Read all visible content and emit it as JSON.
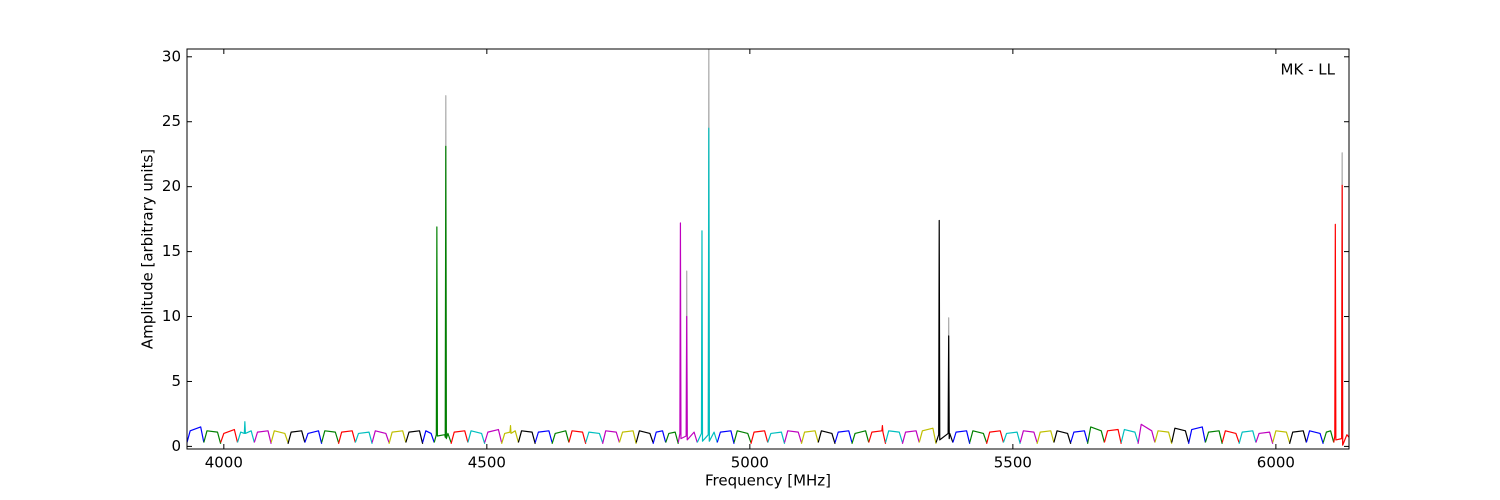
{
  "chart_data": {
    "type": "line",
    "annotation": "MK - LL",
    "x_label": "Frequency [MHz]",
    "y_label": "Amplitude [arbitrary units]",
    "xlim": [
      3930,
      6139
    ],
    "ylim": [
      -0.2,
      30.6
    ],
    "xticks": [
      4000,
      4500,
      5000,
      5500,
      6000
    ],
    "yticks": [
      0,
      5,
      10,
      15,
      20,
      25,
      30
    ],
    "series": [
      {
        "color": "#aaaaaa",
        "x": [
          4421,
          4422,
          4423
        ],
        "values": [
          1.0,
          27.0,
          1.0
        ]
      },
      {
        "color": "#aaaaaa",
        "x": [
          4879,
          4880,
          4881
        ],
        "values": [
          0.8,
          13.5,
          0.5
        ]
      },
      {
        "color": "#aaaaaa",
        "x": [
          4921,
          4922,
          4923
        ],
        "values": [
          0.9,
          30.6,
          0.4
        ]
      },
      {
        "color": "#aaaaaa",
        "x": [
          5377,
          5378,
          5379
        ],
        "values": [
          1.0,
          9.9,
          0.6
        ]
      },
      {
        "color": "#aaaaaa",
        "x": [
          6125,
          6126,
          6127
        ],
        "values": [
          0.6,
          22.6,
          0.1
        ]
      },
      {
        "color": "#0000ff",
        "x": [
          3930,
          3936,
          3956,
          3962
        ],
        "values": [
          0.3,
          1.2,
          1.5,
          0.3
        ]
      },
      {
        "color": "#008000",
        "x": [
          3962,
          3968,
          3988,
          3994
        ],
        "values": [
          0.3,
          1.2,
          1.1,
          0.2
        ]
      },
      {
        "color": "#ff0000",
        "x": [
          3994,
          4000,
          4020,
          4026
        ],
        "values": [
          0.3,
          1.0,
          1.3,
          0.3
        ]
      },
      {
        "color": "#00bfbf",
        "x": [
          4026,
          4032,
          4039,
          4040,
          4041,
          4052,
          4058
        ],
        "values": [
          0.3,
          1.1,
          1.0,
          1.9,
          1.0,
          1.2,
          0.3
        ]
      },
      {
        "color": "#bf00bf",
        "x": [
          4058,
          4064,
          4084,
          4090
        ],
        "values": [
          0.3,
          1.1,
          1.2,
          0.2
        ]
      },
      {
        "color": "#bfbf00",
        "x": [
          4090,
          4096,
          4116,
          4122
        ],
        "values": [
          0.3,
          1.2,
          1.0,
          0.3
        ]
      },
      {
        "color": "#000000",
        "x": [
          4122,
          4128,
          4148,
          4154
        ],
        "values": [
          0.2,
          1.1,
          1.2,
          0.3
        ]
      },
      {
        "color": "#0000ff",
        "x": [
          4154,
          4160,
          4180,
          4186
        ],
        "values": [
          0.3,
          1.0,
          1.2,
          0.2
        ]
      },
      {
        "color": "#008000",
        "x": [
          4186,
          4192,
          4212,
          4218
        ],
        "values": [
          0.3,
          1.2,
          1.1,
          0.3
        ]
      },
      {
        "color": "#ff0000",
        "x": [
          4218,
          4224,
          4244,
          4250
        ],
        "values": [
          0.2,
          1.1,
          1.2,
          0.3
        ]
      },
      {
        "color": "#00bfbf",
        "x": [
          4250,
          4256,
          4276,
          4282
        ],
        "values": [
          0.3,
          1.0,
          1.1,
          0.2
        ]
      },
      {
        "color": "#bf00bf",
        "x": [
          4282,
          4288,
          4308,
          4314
        ],
        "values": [
          0.3,
          1.2,
          1.0,
          0.3
        ]
      },
      {
        "color": "#bfbf00",
        "x": [
          4314,
          4320,
          4340,
          4346
        ],
        "values": [
          0.2,
          1.1,
          1.2,
          0.3
        ]
      },
      {
        "color": "#000000",
        "x": [
          4346,
          4352,
          4372,
          4378
        ],
        "values": [
          0.3,
          1.1,
          1.2,
          0.2
        ]
      },
      {
        "color": "#0000ff",
        "x": [
          4378,
          4384,
          4394,
          4400
        ],
        "values": [
          0.3,
          1.2,
          1.0,
          0.3
        ]
      },
      {
        "color": "#008000",
        "x": [
          4400,
          4404,
          4405,
          4406,
          4420,
          4421,
          4422,
          4423,
          4426,
          4432
        ],
        "values": [
          0.3,
          0.9,
          16.9,
          0.8,
          0.9,
          0.7,
          23.1,
          0.6,
          1.0,
          0.3
        ]
      },
      {
        "color": "#ff0000",
        "x": [
          4432,
          4438,
          4458,
          4464
        ],
        "values": [
          0.2,
          1.1,
          1.2,
          0.3
        ]
      },
      {
        "color": "#00bfbf",
        "x": [
          4464,
          4470,
          4490,
          4496
        ],
        "values": [
          0.3,
          1.2,
          1.0,
          0.2
        ]
      },
      {
        "color": "#bf00bf",
        "x": [
          4496,
          4502,
          4522,
          4528
        ],
        "values": [
          0.3,
          1.1,
          1.3,
          0.3
        ]
      },
      {
        "color": "#bfbf00",
        "x": [
          4528,
          4534,
          4544,
          4545,
          4546,
          4554,
          4560
        ],
        "values": [
          0.2,
          1.0,
          1.1,
          1.6,
          1.0,
          1.2,
          0.3
        ]
      },
      {
        "color": "#000000",
        "x": [
          4560,
          4566,
          4586,
          4592
        ],
        "values": [
          0.3,
          1.2,
          1.1,
          0.2
        ]
      },
      {
        "color": "#0000ff",
        "x": [
          4592,
          4598,
          4618,
          4624
        ],
        "values": [
          0.3,
          1.1,
          1.2,
          0.3
        ]
      },
      {
        "color": "#008000",
        "x": [
          4624,
          4630,
          4650,
          4656
        ],
        "values": [
          0.2,
          1.0,
          1.2,
          0.3
        ]
      },
      {
        "color": "#ff0000",
        "x": [
          4656,
          4662,
          4682,
          4688
        ],
        "values": [
          0.3,
          1.2,
          1.1,
          0.2
        ]
      },
      {
        "color": "#00bfbf",
        "x": [
          4688,
          4694,
          4714,
          4720
        ],
        "values": [
          0.3,
          1.1,
          1.0,
          0.3
        ]
      },
      {
        "color": "#bf00bf",
        "x": [
          4720,
          4726,
          4746,
          4752
        ],
        "values": [
          0.2,
          1.2,
          1.1,
          0.3
        ]
      },
      {
        "color": "#bfbf00",
        "x": [
          4752,
          4758,
          4778,
          4784
        ],
        "values": [
          0.3,
          1.1,
          1.2,
          0.2
        ]
      },
      {
        "color": "#000000",
        "x": [
          4784,
          4790,
          4810,
          4816
        ],
        "values": [
          0.3,
          1.2,
          1.0,
          0.3
        ]
      },
      {
        "color": "#0000ff",
        "x": [
          4816,
          4822,
          4834,
          4840
        ],
        "values": [
          0.2,
          1.1,
          1.2,
          0.3
        ]
      },
      {
        "color": "#008000",
        "x": [
          4840,
          4846,
          4858,
          4864
        ],
        "values": [
          0.3,
          1.0,
          1.1,
          0.2
        ]
      },
      {
        "color": "#bf00bf",
        "x": [
          4864,
          4867,
          4868,
          4869,
          4879,
          4880,
          4881,
          4894,
          4900
        ],
        "values": [
          0.3,
          1.0,
          17.2,
          0.6,
          0.8,
          10.0,
          0.5,
          1.1,
          0.3
        ]
      },
      {
        "color": "#00bfbf",
        "x": [
          4900,
          4908,
          4909,
          4910,
          4921,
          4922,
          4923,
          4932,
          4938
        ],
        "values": [
          0.3,
          1.0,
          16.6,
          0.4,
          0.9,
          24.5,
          0.4,
          1.1,
          0.3
        ]
      },
      {
        "color": "#0000ff",
        "x": [
          4938,
          4944,
          4964,
          4970
        ],
        "values": [
          0.3,
          1.1,
          1.2,
          0.2
        ]
      },
      {
        "color": "#008000",
        "x": [
          4970,
          4976,
          4996,
          5002
        ],
        "values": [
          0.3,
          1.2,
          1.0,
          0.3
        ]
      },
      {
        "color": "#ff0000",
        "x": [
          5002,
          5008,
          5028,
          5034
        ],
        "values": [
          0.2,
          1.1,
          1.2,
          0.3
        ]
      },
      {
        "color": "#00bfbf",
        "x": [
          5034,
          5040,
          5060,
          5066
        ],
        "values": [
          0.3,
          1.0,
          1.1,
          0.2
        ]
      },
      {
        "color": "#bf00bf",
        "x": [
          5066,
          5072,
          5092,
          5098
        ],
        "values": [
          0.3,
          1.2,
          1.1,
          0.3
        ]
      },
      {
        "color": "#bfbf00",
        "x": [
          5098,
          5104,
          5124,
          5130
        ],
        "values": [
          0.2,
          1.1,
          1.2,
          0.3
        ]
      },
      {
        "color": "#000000",
        "x": [
          5130,
          5136,
          5156,
          5162
        ],
        "values": [
          0.3,
          1.2,
          1.0,
          0.2
        ]
      },
      {
        "color": "#0000ff",
        "x": [
          5162,
          5168,
          5188,
          5194
        ],
        "values": [
          0.3,
          1.1,
          1.2,
          0.3
        ]
      },
      {
        "color": "#008000",
        "x": [
          5194,
          5200,
          5220,
          5226
        ],
        "values": [
          0.2,
          1.0,
          1.2,
          0.3
        ]
      },
      {
        "color": "#ff0000",
        "x": [
          5226,
          5232,
          5251,
          5252,
          5253,
          5258
        ],
        "values": [
          0.3,
          1.1,
          1.2,
          1.6,
          1.1,
          0.2
        ]
      },
      {
        "color": "#00bfbf",
        "x": [
          5258,
          5264,
          5284,
          5290
        ],
        "values": [
          0.3,
          1.2,
          1.1,
          0.3
        ]
      },
      {
        "color": "#bf00bf",
        "x": [
          5290,
          5296,
          5316,
          5322
        ],
        "values": [
          0.2,
          1.1,
          1.2,
          0.3
        ]
      },
      {
        "color": "#bfbf00",
        "x": [
          5322,
          5328,
          5348,
          5354
        ],
        "values": [
          0.3,
          1.2,
          1.4,
          0.2
        ]
      },
      {
        "color": "#000000",
        "x": [
          5354,
          5359,
          5360,
          5361,
          5377,
          5378,
          5379,
          5380,
          5386
        ],
        "values": [
          0.3,
          0.9,
          17.4,
          0.5,
          1.0,
          8.5,
          0.6,
          1.0,
          0.3
        ]
      },
      {
        "color": "#0000ff",
        "x": [
          5386,
          5392,
          5412,
          5418
        ],
        "values": [
          0.3,
          1.1,
          1.2,
          0.2
        ]
      },
      {
        "color": "#008000",
        "x": [
          5418,
          5424,
          5444,
          5450
        ],
        "values": [
          0.3,
          1.2,
          1.0,
          0.3
        ]
      },
      {
        "color": "#ff0000",
        "x": [
          5450,
          5456,
          5476,
          5482
        ],
        "values": [
          0.2,
          1.1,
          1.2,
          0.3
        ]
      },
      {
        "color": "#00bfbf",
        "x": [
          5482,
          5488,
          5508,
          5514
        ],
        "values": [
          0.3,
          1.0,
          1.1,
          0.2
        ]
      },
      {
        "color": "#bf00bf",
        "x": [
          5514,
          5520,
          5540,
          5546
        ],
        "values": [
          0.3,
          1.2,
          1.1,
          0.3
        ]
      },
      {
        "color": "#bfbf00",
        "x": [
          5546,
          5552,
          5572,
          5578
        ],
        "values": [
          0.2,
          1.1,
          1.2,
          0.3
        ]
      },
      {
        "color": "#000000",
        "x": [
          5578,
          5584,
          5604,
          5610
        ],
        "values": [
          0.3,
          1.2,
          1.0,
          0.2
        ]
      },
      {
        "color": "#0000ff",
        "x": [
          5610,
          5616,
          5636,
          5642
        ],
        "values": [
          0.3,
          1.1,
          1.2,
          0.3
        ]
      },
      {
        "color": "#008000",
        "x": [
          5642,
          5648,
          5668,
          5674
        ],
        "values": [
          0.2,
          1.5,
          1.2,
          0.3
        ]
      },
      {
        "color": "#ff0000",
        "x": [
          5674,
          5680,
          5700,
          5706
        ],
        "values": [
          0.3,
          1.2,
          1.3,
          0.2
        ]
      },
      {
        "color": "#00bfbf",
        "x": [
          5706,
          5712,
          5732,
          5738
        ],
        "values": [
          0.3,
          1.3,
          1.1,
          0.3
        ]
      },
      {
        "color": "#bf00bf",
        "x": [
          5738,
          5744,
          5764,
          5770
        ],
        "values": [
          0.2,
          1.7,
          1.2,
          0.3
        ]
      },
      {
        "color": "#bfbf00",
        "x": [
          5770,
          5776,
          5796,
          5802
        ],
        "values": [
          0.3,
          1.2,
          1.1,
          0.2
        ]
      },
      {
        "color": "#000000",
        "x": [
          5802,
          5808,
          5828,
          5834
        ],
        "values": [
          0.3,
          1.4,
          1.2,
          0.3
        ]
      },
      {
        "color": "#0000ff",
        "x": [
          5834,
          5840,
          5860,
          5866
        ],
        "values": [
          0.2,
          1.3,
          1.5,
          0.3
        ]
      },
      {
        "color": "#008000",
        "x": [
          5866,
          5872,
          5892,
          5898
        ],
        "values": [
          0.3,
          1.1,
          1.2,
          0.2
        ]
      },
      {
        "color": "#ff0000",
        "x": [
          5898,
          5904,
          5924,
          5930
        ],
        "values": [
          0.3,
          1.2,
          1.0,
          0.3
        ]
      },
      {
        "color": "#00bfbf",
        "x": [
          5930,
          5936,
          5956,
          5962
        ],
        "values": [
          0.2,
          1.1,
          1.2,
          0.3
        ]
      },
      {
        "color": "#bf00bf",
        "x": [
          5962,
          5968,
          5988,
          5994
        ],
        "values": [
          0.3,
          1.0,
          1.1,
          0.2
        ]
      },
      {
        "color": "#bfbf00",
        "x": [
          5994,
          6000,
          6020,
          6026
        ],
        "values": [
          0.3,
          1.2,
          1.1,
          0.3
        ]
      },
      {
        "color": "#000000",
        "x": [
          6026,
          6032,
          6052,
          6058
        ],
        "values": [
          0.2,
          1.1,
          1.2,
          0.3
        ]
      },
      {
        "color": "#0000ff",
        "x": [
          6058,
          6064,
          6084,
          6090
        ],
        "values": [
          0.3,
          1.2,
          1.0,
          0.2
        ]
      },
      {
        "color": "#008000",
        "x": [
          6090,
          6096,
          6104,
          6110
        ],
        "values": [
          0.3,
          1.1,
          1.2,
          0.3
        ]
      },
      {
        "color": "#ff0000",
        "x": [
          6110,
          6112,
          6113,
          6114,
          6125,
          6126,
          6127,
          6135,
          6139
        ],
        "values": [
          0.3,
          0.8,
          17.1,
          0.5,
          0.6,
          20.1,
          0.1,
          0.9,
          0.7
        ]
      }
    ]
  }
}
